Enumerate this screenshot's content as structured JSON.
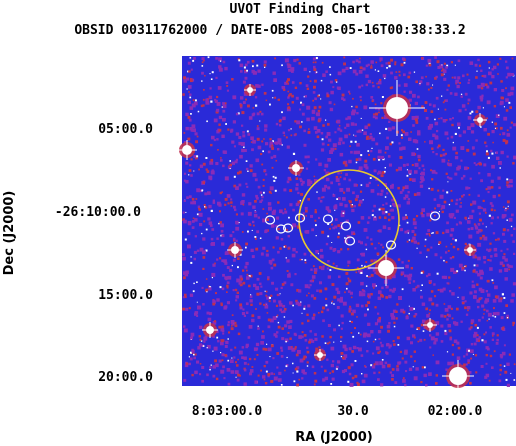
{
  "chart_data": {
    "type": "image",
    "title": "UVOT Finding Chart",
    "subtitle": "OBSID 00311762000 / DATE-OBS 2008-05-16T00:38:33.2",
    "xlabel": "RA (J2000)",
    "ylabel": "Dec (J2000)",
    "x_ticks": [
      "8:03:00.0",
      "30.0",
      "02:00.0"
    ],
    "y_ticks": [
      "05:00.0",
      "-26:10:00.0",
      "15:00.0",
      "20:00.0"
    ],
    "colors": {
      "background": "#2a2ad8",
      "faint": "#8a2bb8",
      "mid": "#c03050",
      "bright": "#ffffff",
      "error_circle": "#e8c830",
      "source_markers": "#ffffff"
    }
  }
}
